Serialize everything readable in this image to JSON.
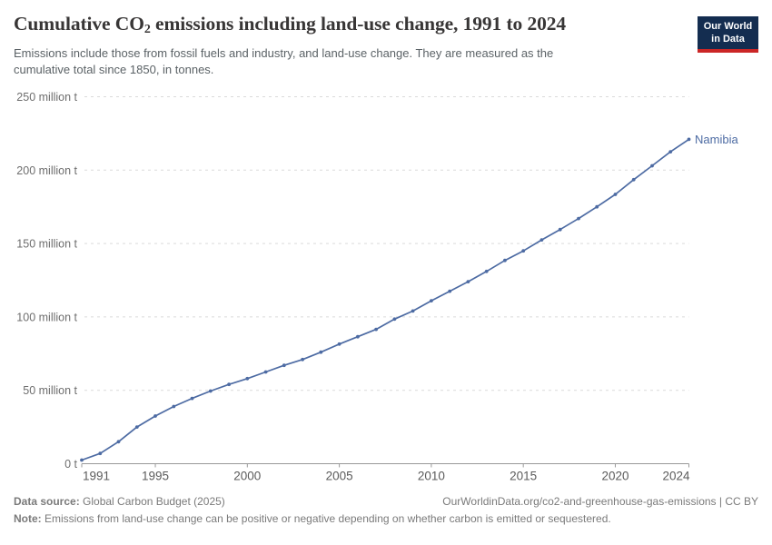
{
  "header": {
    "title_pre": "Cumulative CO",
    "title_sub": "2",
    "title_post": " emissions including land-use change, 1991 to 2024",
    "subtitle": "Emissions include those from fossil fuels and industry, and land-use change. They are measured as the cumulative total since 1850, in tonnes.",
    "logo": {
      "line1": "Our World",
      "line2": "in Data"
    }
  },
  "chart_data": {
    "type": "line",
    "title": "Cumulative CO₂ emissions including land-use change, 1991 to 2024",
    "x": [
      1991,
      1992,
      1993,
      1994,
      1995,
      1996,
      1997,
      1998,
      1999,
      2000,
      2001,
      2002,
      2003,
      2004,
      2005,
      2006,
      2007,
      2008,
      2009,
      2010,
      2011,
      2012,
      2013,
      2014,
      2015,
      2016,
      2017,
      2018,
      2019,
      2020,
      2021,
      2022,
      2023,
      2024
    ],
    "series": [
      {
        "name": "Namibia",
        "color": "#4d6ba3",
        "values": [
          2.5,
          7,
          15,
          25,
          32.5,
          39,
          44.5,
          49.5,
          54,
          58,
          62.5,
          67,
          71,
          76,
          81.5,
          86.5,
          91.5,
          98.5,
          104,
          111,
          117.5,
          124,
          131,
          138.5,
          145,
          152.5,
          159.5,
          167,
          175,
          183.5,
          193.5,
          203,
          212.5,
          221
        ]
      }
    ],
    "unit": "tonnes",
    "ylim": [
      0,
      250
    ],
    "x_range": [
      1991,
      2024
    ],
    "y_ticks": [
      {
        "value": 0,
        "label": "0 t"
      },
      {
        "value": 50,
        "label": "50 million t"
      },
      {
        "value": 100,
        "label": "100 million t"
      },
      {
        "value": 150,
        "label": "150 million t"
      },
      {
        "value": 200,
        "label": "200 million t"
      },
      {
        "value": 250,
        "label": "250 million t"
      }
    ],
    "x_ticks": [
      1991,
      1995,
      2000,
      2005,
      2010,
      2015,
      2020,
      2024
    ],
    "grid": true,
    "legend_position": "end-of-line"
  },
  "colors": {
    "line": "#4d6ba3",
    "grid": "#dadada",
    "axis": "#999999",
    "y_tick_text": "#6e6e6e",
    "x_tick_text": "#5b5b5b",
    "title": "#383636",
    "subtitle": "#5b6266",
    "footer": "#7a7a7a",
    "logo_bg": "#142D50",
    "logo_red": "#CB2626"
  },
  "footer": {
    "datasource_label": "Data source:",
    "datasource_value": " Global Carbon Budget (2025)",
    "url_text": "OurWorldinData.org/co2-and-greenhouse-gas-emissions | CC BY",
    "note_label": "Note:",
    "note_value": " Emissions from land-use change can be positive or negative depending on whether carbon is emitted or sequestered."
  }
}
